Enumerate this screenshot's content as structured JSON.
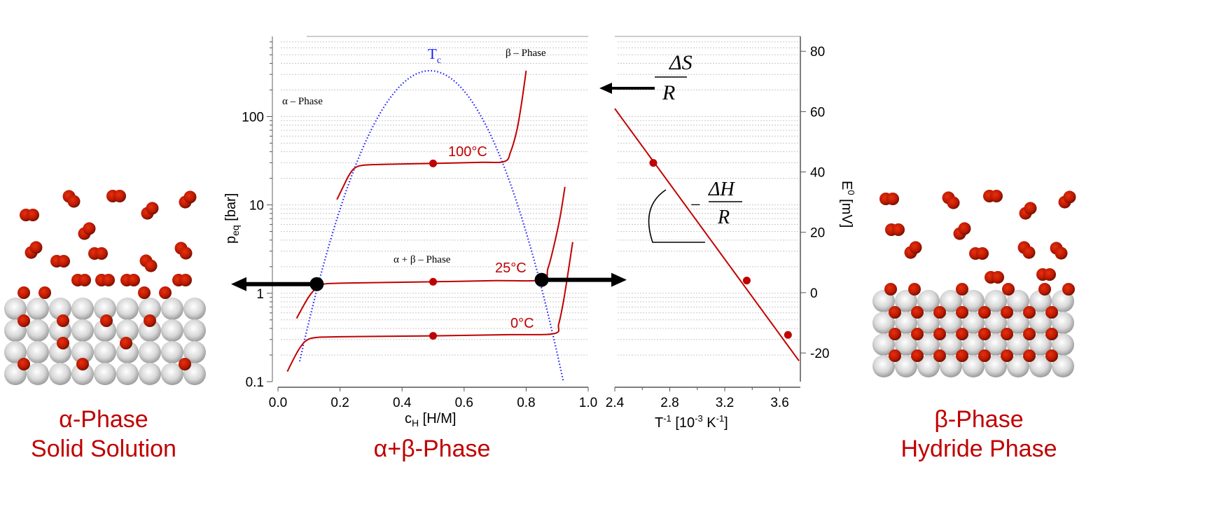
{
  "colors": {
    "isotherm": "#c00000",
    "dome": "#1a1aff",
    "arrow": "#000000",
    "label": "#c00000",
    "grid": "#c8c8c8"
  },
  "labels": {
    "alpha_title": "α-Phase",
    "alpha_sub": "Solid Solution",
    "mixed_title": "α+β-Phase",
    "beta_title": "β-Phase",
    "beta_sub": "Hydride Phase"
  },
  "chart_data": [
    {
      "type": "line",
      "xlabel": "c_H [H/M]",
      "xlabel_main": "c",
      "xlabel_sub": "H",
      "xlabel_rest": " [H/M]",
      "ylabel_main": "p",
      "ylabel_sub": "eq",
      "ylabel_rest": " [bar]",
      "ylabel": "p_eq [bar]",
      "yscale": "log",
      "xlim": [
        0.0,
        1.0
      ],
      "ylim": [
        0.1,
        750
      ],
      "xticks": [
        "0.0",
        "0.2",
        "0.4",
        "0.6",
        "0.8",
        "1.0"
      ],
      "yticks": [
        "0.1",
        "1",
        "10",
        "100"
      ],
      "grid": "horizontal dotted",
      "annotations": {
        "alpha": "α – Phase",
        "beta": "β – Phase",
        "mixed": "α + β – Phase",
        "tc_main": "T",
        "tc_sub": "c"
      },
      "series": [
        {
          "name": "100°C",
          "points": [
            [
              0.19,
              11.5
            ],
            [
              0.21,
              16
            ],
            [
              0.23,
              22
            ],
            [
              0.25,
              26.5
            ],
            [
              0.28,
              28.2
            ],
            [
              0.35,
              28.8
            ],
            [
              0.5,
              29.5
            ],
            [
              0.65,
              30.3
            ],
            [
              0.73,
              31
            ],
            [
              0.75,
              40
            ],
            [
              0.77,
              70
            ],
            [
              0.785,
              140
            ],
            [
              0.8,
              330
            ]
          ],
          "marker": [
            0.5,
            29.5
          ]
        },
        {
          "name": "25°C",
          "points": [
            [
              0.06,
              0.52
            ],
            [
              0.08,
              0.7
            ],
            [
              0.1,
              0.92
            ],
            [
              0.12,
              1.12
            ],
            [
              0.14,
              1.25
            ],
            [
              0.2,
              1.3
            ],
            [
              0.5,
              1.35
            ],
            [
              0.7,
              1.39
            ],
            [
              0.85,
              1.42
            ],
            [
              0.87,
              1.9
            ],
            [
              0.89,
              3.5
            ],
            [
              0.91,
              7.5
            ],
            [
              0.925,
              16
            ]
          ],
          "marker": [
            0.5,
            1.35
          ]
        },
        {
          "name": "0°C",
          "points": [
            [
              0.03,
              0.13
            ],
            [
              0.05,
              0.18
            ],
            [
              0.07,
              0.24
            ],
            [
              0.09,
              0.29
            ],
            [
              0.12,
              0.315
            ],
            [
              0.2,
              0.322
            ],
            [
              0.5,
              0.33
            ],
            [
              0.75,
              0.34
            ],
            [
              0.89,
              0.35
            ],
            [
              0.905,
              0.45
            ],
            [
              0.92,
              0.8
            ],
            [
              0.935,
              1.7
            ],
            [
              0.95,
              3.8
            ]
          ],
          "marker": [
            0.5,
            0.33
          ]
        }
      ],
      "dome": {
        "name": "Tc",
        "peak_c": 0.49,
        "peak_p": 330,
        "from_c": 0.07,
        "to_c": 0.92,
        "p_at_from": 0.17,
        "p_at_to": 0.1
      },
      "transition_points": [
        [
          0.125,
          1.27
        ],
        [
          0.85,
          1.42
        ]
      ]
    },
    {
      "type": "scatter",
      "xlabel": "T^-1 [10^-3 K^-1]",
      "xlabel_parts": [
        "T",
        "-1",
        " [10",
        "-3",
        " K",
        "-1",
        "]"
      ],
      "ylabel": "E^0 [mV]",
      "ylabel_parts": [
        "E",
        "0",
        " [mV]"
      ],
      "xlim": [
        2.4,
        3.75
      ],
      "ylim": [
        -29.5,
        84
      ],
      "xticks": [
        "2.4",
        "2.8",
        "3.2",
        "3.6"
      ],
      "yticks": [
        "-20",
        "0",
        "20",
        "40",
        "60",
        "80"
      ],
      "points": [
        [
          2.68,
          43
        ],
        [
          3.36,
          4
        ],
        [
          3.66,
          -14
        ]
      ],
      "fit_line": [
        [
          2.4,
          61
        ],
        [
          3.74,
          -22.6
        ]
      ],
      "annotations": {
        "slope": "−",
        "dH": "ΔH",
        "dS": "ΔS",
        "R": "R"
      }
    }
  ]
}
